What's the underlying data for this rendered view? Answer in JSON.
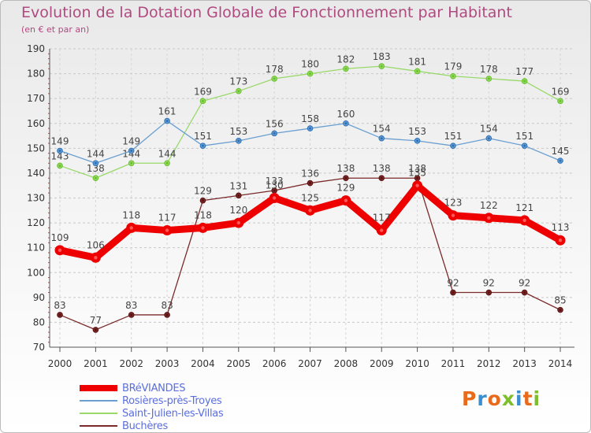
{
  "header": {
    "title": "Evolution de la Dotation Globale de Fonctionnement par Habitant",
    "subtitle": "(en € et par an)"
  },
  "chart_data": {
    "type": "line",
    "title": "Evolution de la Dotation Globale de Fonctionnement par Habitant",
    "subtitle": "(en € et par an)",
    "xlabel": "",
    "ylabel": "",
    "ylim": [
      70,
      190
    ],
    "y_ticks": [
      70,
      80,
      90,
      100,
      110,
      120,
      130,
      140,
      150,
      160,
      170,
      180,
      190
    ],
    "grid": true,
    "legend_position": "bottom-left",
    "x": [
      "2000",
      "2001",
      "2002",
      "2003",
      "2004",
      "2005",
      "2006",
      "2007",
      "2008",
      "2009",
      "2010",
      "2011",
      "2012",
      "2013",
      "2014"
    ],
    "series": [
      {
        "name": "BRéVIANDES",
        "color": "#ee0000",
        "point_color": "#2a4f9f",
        "values": [
          109,
          106,
          118,
          117,
          118,
          120,
          130,
          125,
          129,
          117,
          135,
          123,
          122,
          121,
          113
        ]
      },
      {
        "name": "Rosières-près-Troyes",
        "color": "#6a9fd0",
        "point_color": "#2a6fb8",
        "values": [
          149,
          144,
          149,
          161,
          151,
          153,
          156,
          158,
          160,
          154,
          153,
          151,
          154,
          151,
          145
        ]
      },
      {
        "name": "Saint-Julien-les-Villas",
        "color": "#99d96a",
        "point_color": "#66c028",
        "values": [
          143,
          138,
          144,
          144,
          169,
          173,
          178,
          180,
          182,
          183,
          181,
          179,
          178,
          177,
          169
        ]
      },
      {
        "name": "Buchères",
        "color": "#7a2a2a",
        "point_color": "#5a1010",
        "values": [
          83,
          77,
          83,
          83,
          129,
          131,
          133,
          136,
          138,
          138,
          138,
          92,
          92,
          92,
          85
        ]
      }
    ]
  },
  "logo": {
    "letters": [
      "P",
      "r",
      "o",
      "x",
      "i",
      "t",
      "i"
    ],
    "colors": [
      "#e86a1a",
      "#3a8fd0",
      "#e86a1a",
      "#7cbf2a",
      "#3a8fd0",
      "#e86a1a",
      "#7cbf2a"
    ]
  }
}
